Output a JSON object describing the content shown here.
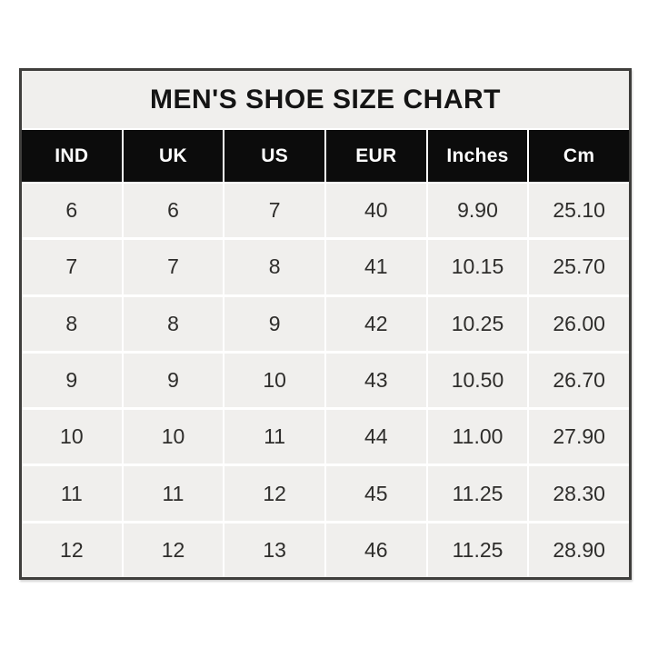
{
  "chart_data": {
    "type": "table",
    "title": "MEN'S SHOE SIZE CHART",
    "columns": [
      "IND",
      "UK",
      "US",
      "EUR",
      "Inches",
      "Cm"
    ],
    "rows": [
      [
        "6",
        "6",
        "7",
        "40",
        "9.90",
        "25.10"
      ],
      [
        "7",
        "7",
        "8",
        "41",
        "10.15",
        "25.70"
      ],
      [
        "8",
        "8",
        "9",
        "42",
        "10.25",
        "26.00"
      ],
      [
        "9",
        "9",
        "10",
        "43",
        "10.50",
        "26.70"
      ],
      [
        "10",
        "10",
        "11",
        "44",
        "11.00",
        "27.90"
      ],
      [
        "11",
        "11",
        "12",
        "45",
        "11.25",
        "28.30"
      ],
      [
        "12",
        "12",
        "13",
        "46",
        "11.25",
        "28.90"
      ]
    ]
  },
  "colors": {
    "page_bg": "#ffffff",
    "border": "#3f3e3c",
    "cell_bg": "#f0efed",
    "cell_text": "#2e2d2b",
    "header_bg": "#0c0c0c",
    "header_text": "#ffffff",
    "separator": "#ffffff",
    "title_text": "#141414"
  }
}
